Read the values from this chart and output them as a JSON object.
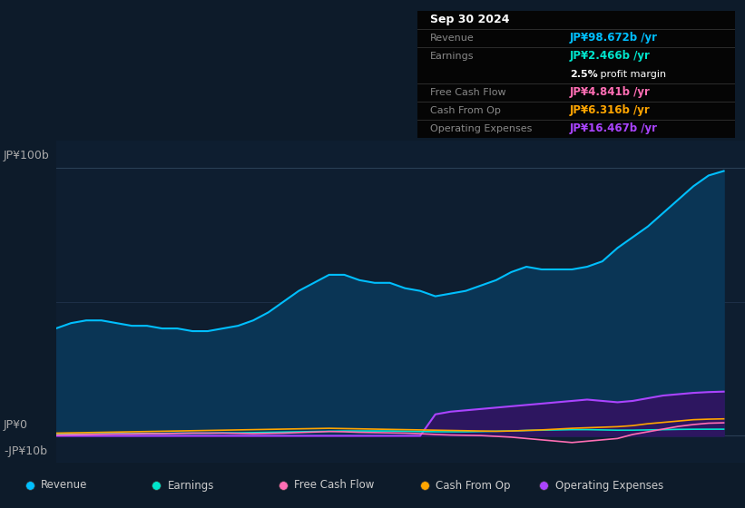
{
  "background_color": "#0d1b2a",
  "plot_bg_color": "#0e1e30",
  "text_color": "#aaaaaa",
  "years": [
    2013.75,
    2014.0,
    2014.25,
    2014.5,
    2014.75,
    2015.0,
    2015.25,
    2015.5,
    2015.75,
    2016.0,
    2016.25,
    2016.5,
    2016.75,
    2017.0,
    2017.25,
    2017.5,
    2017.75,
    2018.0,
    2018.25,
    2018.5,
    2018.75,
    2019.0,
    2019.25,
    2019.5,
    2019.75,
    2020.0,
    2020.25,
    2020.5,
    2020.75,
    2021.0,
    2021.25,
    2021.5,
    2021.75,
    2022.0,
    2022.25,
    2022.5,
    2022.75,
    2023.0,
    2023.25,
    2023.5,
    2023.75,
    2024.0,
    2024.25,
    2024.5,
    2024.75
  ],
  "revenue": [
    40,
    42,
    43,
    43,
    42,
    41,
    41,
    40,
    40,
    39,
    39,
    40,
    41,
    43,
    46,
    50,
    54,
    57,
    60,
    60,
    58,
    57,
    57,
    55,
    54,
    52,
    53,
    54,
    56,
    58,
    61,
    63,
    62,
    62,
    62,
    63,
    65,
    70,
    74,
    78,
    83,
    88,
    93,
    97,
    98.672
  ],
  "earnings": [
    0.5,
    0.6,
    0.7,
    0.8,
    0.8,
    0.8,
    0.9,
    0.9,
    1.0,
    1.0,
    1.0,
    1.1,
    1.1,
    1.2,
    1.3,
    1.4,
    1.5,
    1.6,
    1.7,
    1.8,
    1.8,
    1.8,
    1.8,
    1.7,
    1.6,
    1.5,
    1.5,
    1.5,
    1.6,
    1.7,
    1.8,
    2.0,
    2.1,
    2.2,
    2.3,
    2.3,
    2.2,
    2.1,
    2.1,
    2.2,
    2.3,
    2.4,
    2.45,
    2.46,
    2.466
  ],
  "free_cash_flow": [
    0.3,
    0.4,
    0.5,
    0.6,
    0.7,
    0.7,
    0.8,
    0.8,
    0.9,
    1.0,
    1.0,
    1.0,
    0.9,
    0.8,
    0.9,
    1.0,
    1.2,
    1.4,
    1.6,
    1.5,
    1.3,
    1.2,
    1.1,
    1.0,
    0.8,
    0.5,
    0.3,
    0.2,
    0.1,
    -0.2,
    -0.5,
    -1.0,
    -1.5,
    -2.0,
    -2.5,
    -2.0,
    -1.5,
    -1.0,
    0.5,
    1.5,
    2.5,
    3.5,
    4.2,
    4.7,
    4.841
  ],
  "cash_from_op": [
    1.0,
    1.1,
    1.2,
    1.3,
    1.4,
    1.5,
    1.6,
    1.7,
    1.8,
    1.9,
    2.0,
    2.1,
    2.2,
    2.3,
    2.4,
    2.5,
    2.6,
    2.7,
    2.8,
    2.7,
    2.6,
    2.5,
    2.4,
    2.3,
    2.2,
    2.1,
    2.0,
    1.9,
    1.8,
    1.7,
    1.8,
    2.0,
    2.2,
    2.5,
    2.8,
    3.0,
    3.2,
    3.4,
    3.8,
    4.5,
    5.0,
    5.5,
    6.0,
    6.2,
    6.316
  ],
  "operating_expenses": [
    0.0,
    0.0,
    0.0,
    0.0,
    0.0,
    0.0,
    0.0,
    0.0,
    0.0,
    0.0,
    0.0,
    0.0,
    0.0,
    0.0,
    0.0,
    0.0,
    0.0,
    0.0,
    0.0,
    0.0,
    0.0,
    0.0,
    0.0,
    0.0,
    0.0,
    8.0,
    9.0,
    9.5,
    10.0,
    10.5,
    11.0,
    11.5,
    12.0,
    12.5,
    13.0,
    13.5,
    13.0,
    12.5,
    13.0,
    14.0,
    15.0,
    15.5,
    16.0,
    16.3,
    16.467
  ],
  "revenue_color": "#00bfff",
  "revenue_fill": "#0a3555",
  "earnings_color": "#00e5cc",
  "free_cash_flow_color": "#ff6eb4",
  "cash_from_op_color": "#ffa500",
  "operating_expenses_color": "#aa44ff",
  "operating_expenses_fill": "#2d1660",
  "xlim": [
    2013.75,
    2025.1
  ],
  "ylim": [
    -10,
    110
  ],
  "xticks": [
    2014,
    2015,
    2016,
    2017,
    2018,
    2019,
    2020,
    2021,
    2022,
    2023,
    2024
  ],
  "infobox": {
    "date": "Sep 30 2024",
    "rows": [
      {
        "label": "Revenue",
        "value": "JP¥98.672b /yr",
        "color": "#00bfff"
      },
      {
        "label": "Earnings",
        "value": "JP¥2.466b /yr",
        "color": "#00e5cc"
      },
      {
        "label": "",
        "value": "2.5% profit margin",
        "color": "#ffffff",
        "bold_prefix": "2.5%"
      },
      {
        "label": "Free Cash Flow",
        "value": "JP¥4.841b /yr",
        "color": "#ff6eb4"
      },
      {
        "label": "Cash From Op",
        "value": "JP¥6.316b /yr",
        "color": "#ffa500"
      },
      {
        "label": "Operating Expenses",
        "value": "JP¥16.467b /yr",
        "color": "#aa44ff"
      }
    ]
  },
  "legend_items": [
    {
      "label": "Revenue",
      "color": "#00bfff"
    },
    {
      "label": "Earnings",
      "color": "#00e5cc"
    },
    {
      "label": "Free Cash Flow",
      "color": "#ff6eb4"
    },
    {
      "label": "Cash From Op",
      "color": "#ffa500"
    },
    {
      "label": "Operating Expenses",
      "color": "#aa44ff"
    }
  ]
}
